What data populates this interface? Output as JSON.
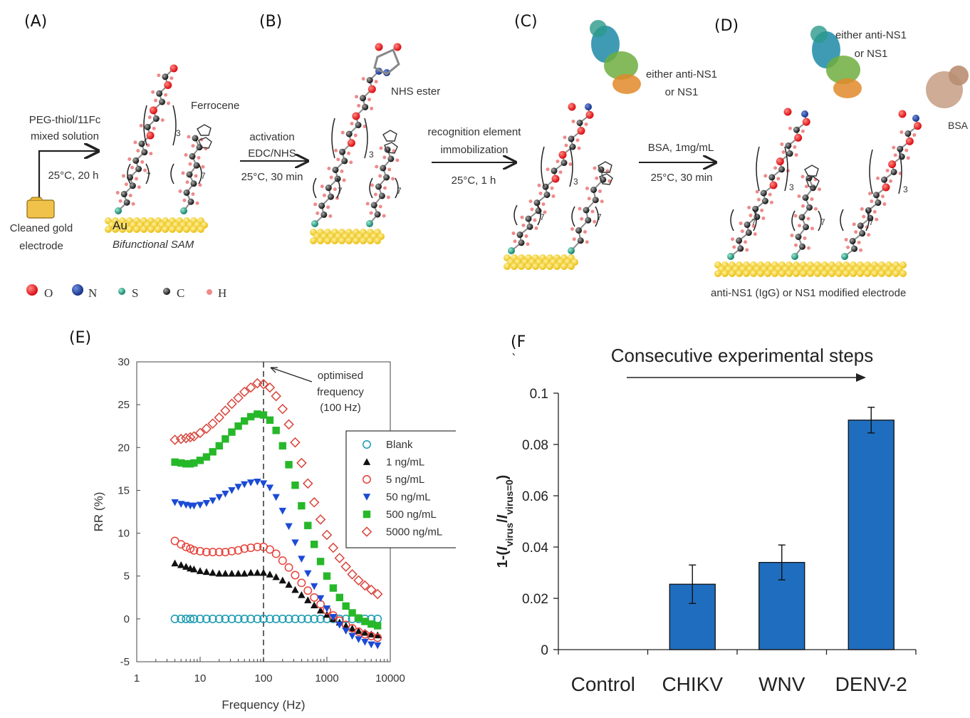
{
  "panels": {
    "A": {
      "label": "(A)",
      "step_line1": "PEG-thiol/11Fc",
      "step_line2": "mixed solution",
      "step_cond": "25°C, 20 h",
      "electrode_line1": "Cleaned gold",
      "electrode_line2": "electrode",
      "ferrocene": "Ferrocene",
      "au": "Au",
      "sam": "Bifunctional SAM",
      "sub3": "3",
      "sub7": "7"
    },
    "B": {
      "label": "(B)",
      "step_line1": "activation",
      "step_line2": "EDC/NHS",
      "step_cond": "25°C, 30 min",
      "nhs": "NHS ester",
      "sub3": "3",
      "sub7": "7"
    },
    "C": {
      "label": "(C)",
      "step_line1": "recognition element",
      "step_line2": "immobilization",
      "step_cond": "25°C, 1 h",
      "protein_line1": "either anti-NS1",
      "protein_line2": "or NS1",
      "sub3": "3",
      "sub7": "7"
    },
    "D": {
      "label": "(D)",
      "step_line1": "BSA, 1mg/mL",
      "step_cond": "25°C, 30 min",
      "protein_line1": "either anti-NS1",
      "protein_line2": "or NS1",
      "bsa": "BSA",
      "caption": "anti-NS1 (IgG) or NS1 modified electrode",
      "sub3": "3",
      "sub7": "7"
    },
    "E": {
      "label": "(E)"
    },
    "F": {
      "label": "(F",
      "label_tick": "`"
    }
  },
  "atom_legend": [
    {
      "symbol": "O",
      "color": "#e8141c"
    },
    {
      "symbol": "N",
      "color": "#1c3c9c"
    },
    {
      "symbol": "S",
      "color": "#1e9a7a"
    },
    {
      "symbol": "C",
      "color": "#222222"
    },
    {
      "symbol": "H",
      "color": "#ef8a8a"
    }
  ],
  "chart_data": [
    {
      "type": "scatter",
      "xlabel": "Frequency (Hz)",
      "ylabel": "RR (%)",
      "xscale": "log",
      "xlim": [
        1,
        10000
      ],
      "ylim": [
        -5,
        30
      ],
      "x_ticks": [
        "1",
        "10",
        "100",
        "1000",
        "10000"
      ],
      "y_ticks": [
        "-5",
        "0",
        "5",
        "10",
        "15",
        "20",
        "25",
        "30"
      ],
      "annotation": {
        "line1": "optimised",
        "line2": "frequency",
        "line3": "(100 Hz)",
        "x": 100
      },
      "legend_position": "right",
      "x": [
        4,
        5,
        6,
        7,
        8,
        10,
        12.6,
        15.8,
        20,
        25,
        31.6,
        40,
        50,
        63,
        80,
        100,
        126,
        158,
        200,
        251,
        316,
        398,
        501,
        631,
        794,
        1000,
        1259,
        1585,
        1995,
        2512,
        3162,
        3981,
        5012,
        6310
      ],
      "series": [
        {
          "name": "Blank",
          "marker": "circle-open",
          "color": "#1a9bb0",
          "values": [
            0,
            0,
            0,
            0,
            0,
            0,
            0,
            0,
            0,
            0,
            0,
            0,
            0,
            0,
            0,
            0,
            0,
            0,
            0,
            0,
            0,
            0,
            0,
            0,
            0,
            0,
            0,
            0,
            0,
            0,
            0,
            0,
            0,
            0
          ]
        },
        {
          "name": "1 ng/mL",
          "marker": "triangle-up",
          "color": "#111111",
          "values": [
            6.5,
            6.3,
            6.1,
            5.9,
            5.8,
            5.6,
            5.5,
            5.4,
            5.3,
            5.3,
            5.3,
            5.3,
            5.3,
            5.4,
            5.4,
            5.4,
            5.2,
            4.9,
            4.5,
            4.0,
            3.4,
            2.8,
            2.2,
            1.6,
            1.0,
            0.5,
            0,
            -0.4,
            -0.8,
            -1.1,
            -1.4,
            -1.6,
            -1.8,
            -1.9
          ]
        },
        {
          "name": "5 ng/mL",
          "marker": "circle-open",
          "color": "#e8413a",
          "values": [
            9.1,
            8.7,
            8.4,
            8.2,
            8.0,
            7.9,
            7.8,
            7.8,
            7.8,
            7.8,
            7.9,
            8.0,
            8.2,
            8.3,
            8.4,
            8.4,
            8.1,
            7.6,
            6.8,
            6.0,
            5.1,
            4.2,
            3.3,
            2.5,
            1.7,
            1.0,
            0.4,
            -0.2,
            -0.7,
            -1.1,
            -1.5,
            -1.8,
            -2.0,
            -2.2
          ]
        },
        {
          "name": "50 ng/mL",
          "marker": "triangle-down",
          "color": "#1b4ad6",
          "values": [
            13.6,
            13.4,
            13.3,
            13.2,
            13.2,
            13.3,
            13.5,
            13.8,
            14.2,
            14.6,
            15.0,
            15.4,
            15.7,
            15.9,
            16.0,
            15.8,
            15.3,
            14.2,
            12.6,
            10.8,
            8.9,
            7.0,
            5.3,
            3.8,
            2.4,
            1.2,
            0.2,
            -0.7,
            -1.4,
            -2.0,
            -2.4,
            -2.7,
            -3.0,
            -3.1
          ]
        },
        {
          "name": "500 ng/mL",
          "marker": "square",
          "color": "#27b82a",
          "values": [
            18.3,
            18.2,
            18.1,
            18.1,
            18.2,
            18.5,
            18.9,
            19.5,
            20.2,
            21.0,
            21.8,
            22.5,
            23.1,
            23.6,
            23.9,
            23.8,
            23.2,
            22.0,
            20.2,
            18.0,
            15.6,
            13.2,
            10.9,
            8.7,
            6.7,
            5.0,
            3.6,
            2.5,
            1.5,
            0.7,
            0.1,
            -0.3,
            -0.6,
            -0.8
          ]
        },
        {
          "name": "5000 ng/mL",
          "marker": "diamond-open",
          "color": "#d8433a",
          "values": [
            20.9,
            21.0,
            21.1,
            21.2,
            21.3,
            21.7,
            22.2,
            22.8,
            23.5,
            24.3,
            25.1,
            25.8,
            26.5,
            27.0,
            27.5,
            27.4,
            27.0,
            26.0,
            24.5,
            22.7,
            20.6,
            18.2,
            15.8,
            13.6,
            11.6,
            9.8,
            8.3,
            7.1,
            6.1,
            5.2,
            4.5,
            3.9,
            3.4,
            2.9
          ]
        }
      ]
    },
    {
      "type": "bar",
      "ylabel": "1-(Ivirus/Ivirus=0)",
      "ylabel_parts": {
        "prefix": "1-(",
        "i1": "I",
        "s1": "virus",
        "slash": "/",
        "i2": "I",
        "s2": "virus=0",
        "suffix": ")"
      },
      "annotation": "Consecutive experimental steps",
      "categories": [
        "Control",
        "CHIKV",
        "WNV",
        "DENV-2"
      ],
      "values": [
        0,
        0.0255,
        0.034,
        0.0895
      ],
      "errors": [
        0,
        0.0075,
        0.0068,
        0.005
      ],
      "ylim": [
        0,
        0.1
      ],
      "y_ticks": [
        "0",
        "0.02",
        "0.04",
        "0.06",
        "0.08",
        "0.1"
      ],
      "bar_color": "#1f6dbf"
    }
  ]
}
